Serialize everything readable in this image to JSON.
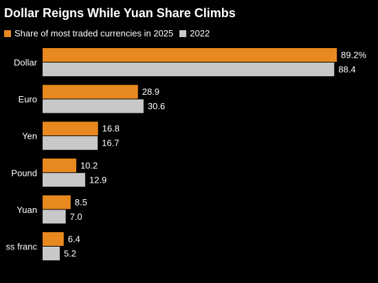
{
  "chart_data": {
    "type": "bar",
    "orientation": "horizontal",
    "title": "Dollar Reigns While Yuan Share Climbs",
    "categories": [
      "Dollar",
      "Euro",
      "Yen",
      "Pound",
      "Yuan",
      "ss franc"
    ],
    "series": [
      {
        "name": "Share of most traded currencies in 2025",
        "color": "#E8891F",
        "values": [
          89.2,
          28.9,
          16.8,
          10.2,
          8.5,
          6.4
        ],
        "labels": [
          "89.2%",
          "28.9",
          "16.8",
          "10.2",
          "8.5",
          "6.4"
        ]
      },
      {
        "name": "2022",
        "color": "#C8C8C8",
        "values": [
          88.4,
          30.6,
          16.7,
          12.9,
          7.0,
          5.2
        ],
        "labels": [
          "88.4",
          "30.6",
          "16.7",
          "12.9",
          "7.0",
          "5.2"
        ]
      }
    ],
    "xlim": [
      0,
      100
    ],
    "grid": false,
    "legend_position": "top-left"
  }
}
